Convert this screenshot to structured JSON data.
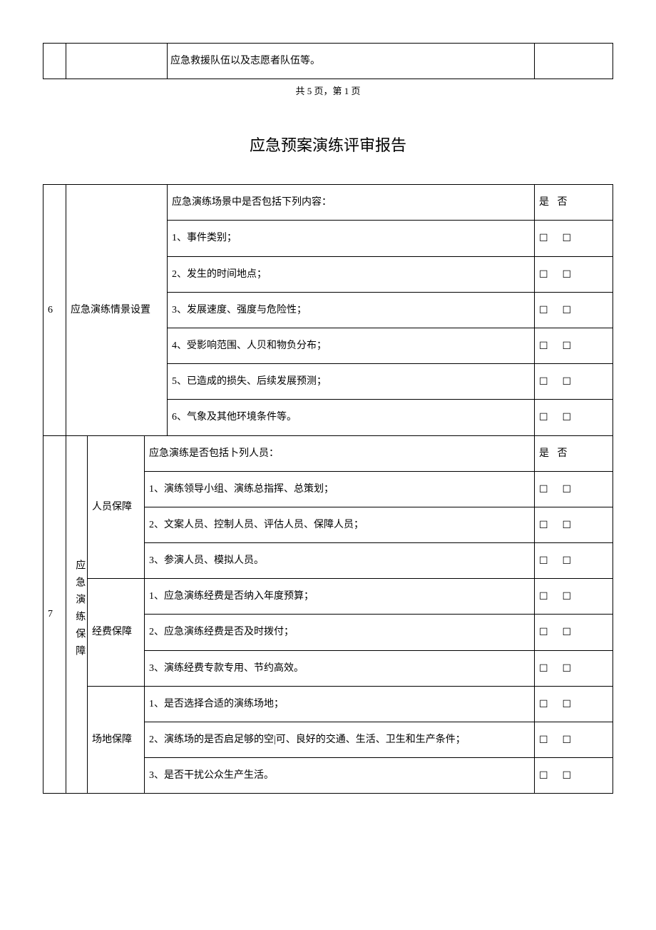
{
  "top_row_text": "应急救援队伍以及志愿者队伍等。",
  "page_caption": "共 5 页，第 1 页",
  "doc_title": "应急预案演练评审报告",
  "yesno_label": "是 否",
  "checkbox_pair": "☐ ☐",
  "section6": {
    "num": "6",
    "category": "应急演练情景设置",
    "header_q": "应急演练场景中是否包括下列内容：",
    "items": [
      "1、事件类别；",
      "2、发生的时间地点；",
      "3、发展速度、强度与危险性；",
      "4、受影响范围、人贝和物负分布；",
      "5、已造成的损失、后续发展预测；",
      "6、气象及其他环境条件等。"
    ]
  },
  "section7": {
    "num": "7",
    "category": "应急演练保障",
    "groups": [
      {
        "sub": "人员保障",
        "header_q": "应急演练是否包括卜列人员：",
        "header_has_yesno": true,
        "items": [
          "1、演练领导小组、演练总指挥、总策划；",
          "2、文案人员、控制人员、评估人员、保障人员；",
          "3、参演人员、模拟人员。"
        ]
      },
      {
        "sub": "经费保障",
        "header_q": null,
        "header_has_yesno": false,
        "items": [
          "1、应急演练经费是否纳入年度预算；",
          "2、应急演练经费是否及时拨付；",
          "3、演练经费专款专用、节约高效。"
        ]
      },
      {
        "sub": "场地保障",
        "header_q": null,
        "header_has_yesno": false,
        "items": [
          "1、是否选择合适的演练场地；",
          "2、演练场的是否启足够的空|可、良好的交通、生活、卫生和生产条件；",
          "3、是否干扰公众生产生活。"
        ]
      }
    ]
  }
}
